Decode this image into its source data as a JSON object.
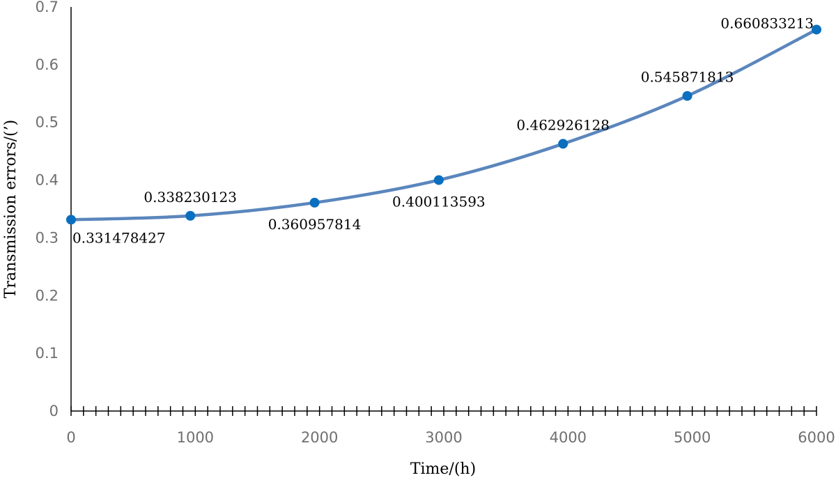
{
  "chart_data": {
    "type": "line",
    "title": "",
    "xlabel": "Time/(h)",
    "ylabel": "Transmission errors/(’)",
    "xlim": [
      0,
      6000
    ],
    "ylim": [
      0,
      0.7
    ],
    "x_ticks": [
      "0",
      "1000",
      "2000",
      "3000",
      "4000",
      "5000",
      "6000"
    ],
    "y_ticks": [
      "0",
      "0.1",
      "0.2",
      "0.3",
      "0.4",
      "0.5",
      "0.6",
      "0.7"
    ],
    "grid": false,
    "series": [
      {
        "x": [
          0,
          960,
          1960,
          2960,
          3960,
          4960,
          6000
        ],
        "values": [
          0.331478427,
          0.338230123,
          0.360957814,
          0.400113593,
          0.462926128,
          0.545871813,
          0.660833213
        ],
        "labels": [
          "0.331478427",
          "0.338230123",
          "0.360957814",
          "0.400113593",
          "0.462926128",
          "0.545871813",
          "0.660833213"
        ],
        "label_positions": [
          "below-right",
          "above",
          "below",
          "below",
          "above",
          "above",
          "left"
        ]
      }
    ],
    "colors": {
      "line": "#5b86bd",
      "marker": "#0a6fbf",
      "axis": "#000000",
      "tick_label": "#6f6f6f"
    }
  }
}
